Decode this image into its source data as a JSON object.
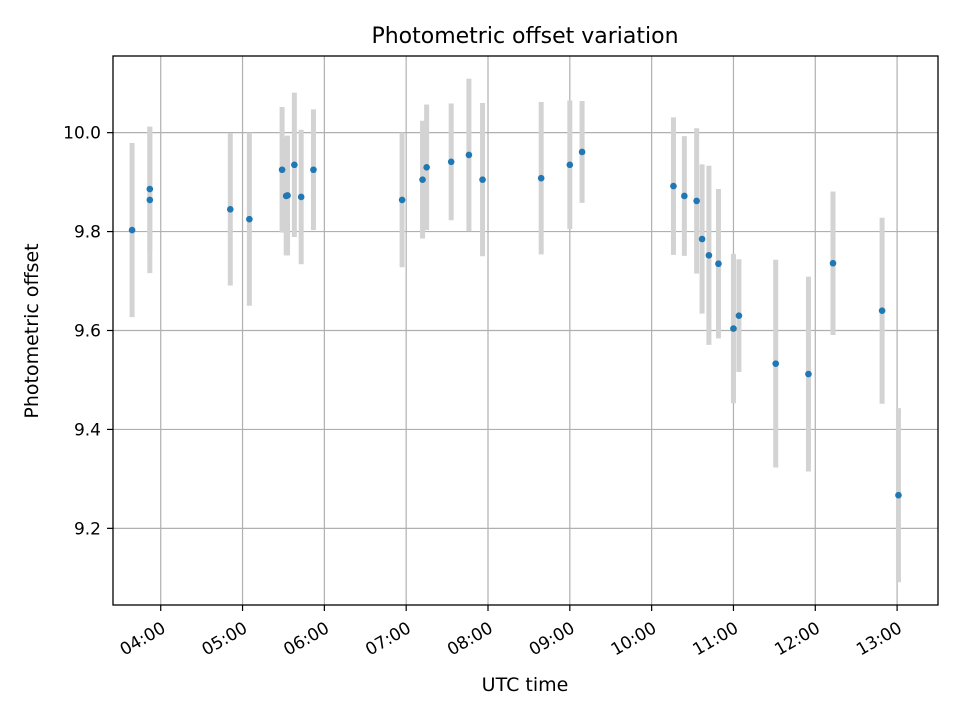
{
  "chart_data": {
    "type": "scatter",
    "title": "Photometric offset variation",
    "xlabel": "UTC time",
    "ylabel": "Photometric offset",
    "xlim": [
      "03:25",
      "13:30"
    ],
    "ylim": [
      9.045,
      10.155
    ],
    "x_ticks": [
      "04:00",
      "05:00",
      "06:00",
      "07:00",
      "08:00",
      "09:00",
      "10:00",
      "11:00",
      "12:00",
      "13:00"
    ],
    "y_ticks": [
      9.2,
      9.4,
      9.6,
      9.8,
      10.0
    ],
    "y_tick_labels": [
      "9.2",
      "9.4",
      "9.6",
      "9.8",
      "10.0"
    ],
    "grid": true,
    "colors": {
      "point": "#1f77b4",
      "errorbar": "#d3d3d3"
    },
    "series": [
      {
        "points": [
          {
            "x": "03:39",
            "y": 9.803,
            "err": 0.176
          },
          {
            "x": "03:52",
            "y": 9.864,
            "err": 0.148
          },
          {
            "x": "03:52",
            "y": 9.886,
            "err": 0.126
          },
          {
            "x": "04:51",
            "y": 9.845,
            "err": 0.154
          },
          {
            "x": "05:05",
            "y": 9.825,
            "err": 0.175
          },
          {
            "x": "05:29",
            "y": 9.925,
            "err": 0.127
          },
          {
            "x": "05:32",
            "y": 9.872,
            "err": 0.12
          },
          {
            "x": "05:33",
            "y": 9.873,
            "err": 0.121
          },
          {
            "x": "05:38",
            "y": 9.935,
            "err": 0.146
          },
          {
            "x": "05:43",
            "y": 9.87,
            "err": 0.136
          },
          {
            "x": "05:52",
            "y": 9.925,
            "err": 0.122
          },
          {
            "x": "06:57",
            "y": 9.864,
            "err": 0.136
          },
          {
            "x": "07:12",
            "y": 9.905,
            "err": 0.119
          },
          {
            "x": "07:15",
            "y": 9.93,
            "err": 0.127
          },
          {
            "x": "07:33",
            "y": 9.941,
            "err": 0.118
          },
          {
            "x": "07:46",
            "y": 9.955,
            "err": 0.154
          },
          {
            "x": "07:56",
            "y": 9.905,
            "err": 0.155
          },
          {
            "x": "08:39",
            "y": 9.908,
            "err": 0.154
          },
          {
            "x": "09:00",
            "y": 9.935,
            "err": 0.13
          },
          {
            "x": "09:09",
            "y": 9.961,
            "err": 0.103
          },
          {
            "x": "10:16",
            "y": 9.892,
            "err": 0.139
          },
          {
            "x": "10:24",
            "y": 9.872,
            "err": 0.121
          },
          {
            "x": "10:33",
            "y": 9.862,
            "err": 0.147
          },
          {
            "x": "10:37",
            "y": 9.785,
            "err": 0.151
          },
          {
            "x": "10:42",
            "y": 9.752,
            "err": 0.181
          },
          {
            "x": "10:49",
            "y": 9.735,
            "err": 0.151
          },
          {
            "x": "11:00",
            "y": 9.604,
            "err": 0.151
          },
          {
            "x": "11:04",
            "y": 9.63,
            "err": 0.114
          },
          {
            "x": "11:31",
            "y": 9.533,
            "err": 0.21
          },
          {
            "x": "11:55",
            "y": 9.512,
            "err": 0.197
          },
          {
            "x": "12:13",
            "y": 9.736,
            "err": 0.145
          },
          {
            "x": "12:49",
            "y": 9.64,
            "err": 0.188
          },
          {
            "x": "13:01",
            "y": 9.267,
            "err": 0.176
          }
        ]
      }
    ]
  }
}
